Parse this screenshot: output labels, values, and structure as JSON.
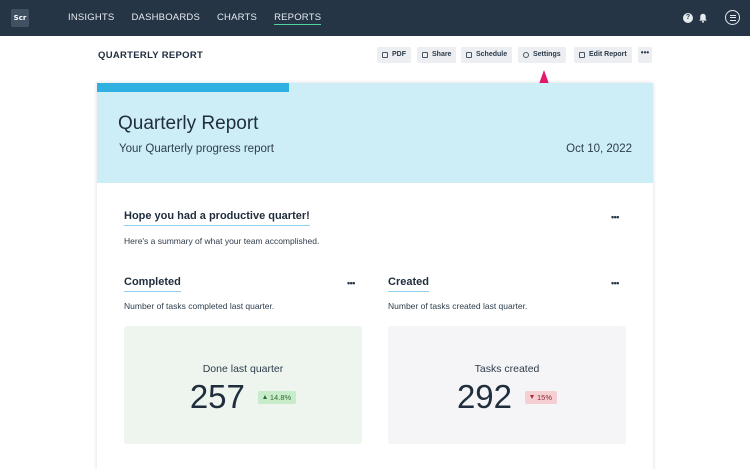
{
  "nav": {
    "logo": "Scr",
    "items": [
      {
        "label": "INSIGHTS"
      },
      {
        "label": "DASHBOARDS"
      },
      {
        "label": "CHARTS"
      },
      {
        "label": "REPORTS",
        "active": true
      }
    ],
    "icons": [
      "help-icon",
      "bell-icon",
      "menu-icon"
    ]
  },
  "header": {
    "title": "QUARTERLY REPORT",
    "buttons": {
      "pdf": "PDF",
      "share": "Share",
      "schedule": "Schedule",
      "settings": "Settings",
      "edit": "Edit Report",
      "more": "•••"
    }
  },
  "report": {
    "title": "Quarterly Report",
    "subtitle": "Your Quarterly progress report",
    "date": "Oct 10, 2022",
    "intro": {
      "title": "Hope you had a productive quarter!",
      "description": "Here's a summary of what your team accomplished."
    },
    "completed": {
      "title": "Completed",
      "description": "Number of tasks completed last quarter.",
      "label": "Done last quarter",
      "value": "257",
      "change": "14.8%",
      "direction": "up"
    },
    "created": {
      "title": "Created",
      "description": "Number of tasks created last quarter.",
      "label": "Tasks created",
      "value": "292",
      "change": "15%",
      "direction": "down"
    },
    "more": "•••"
  },
  "colors": {
    "topbar": "#253545",
    "hero": "#cdeef7",
    "accent": "#2fb0e0",
    "arrow": "#e8186e",
    "completed_box": "#eef5ee",
    "created_box": "#f5f4f6"
  }
}
